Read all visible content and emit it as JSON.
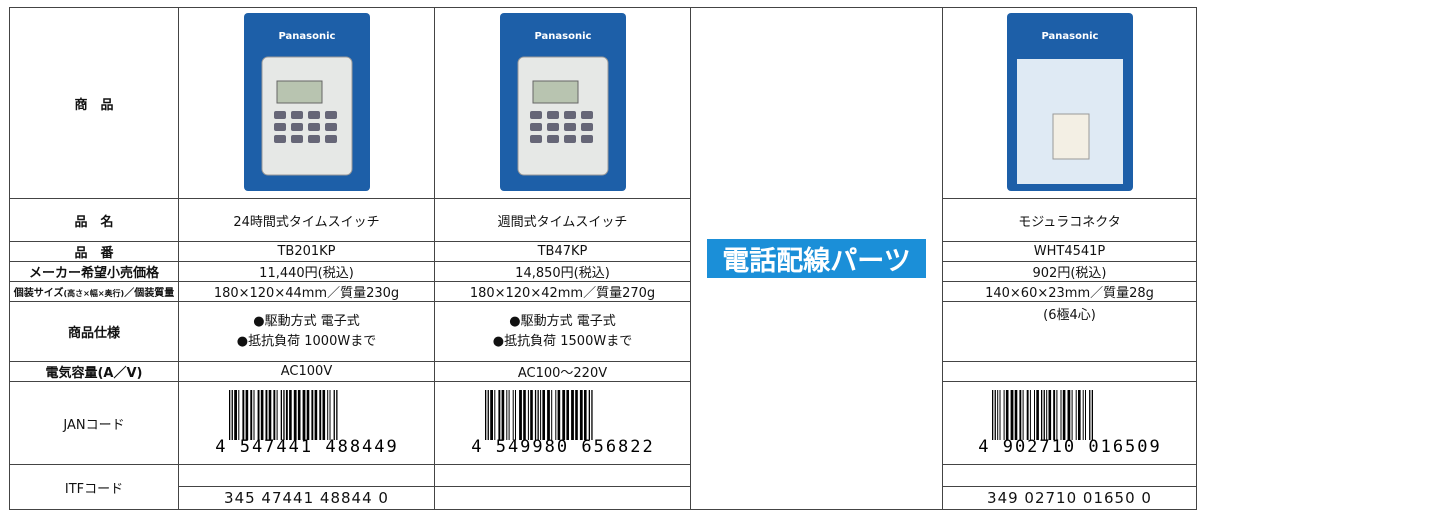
{
  "labels": {
    "product": "商　品",
    "name": "品　名",
    "number": "品　番",
    "price": "メーカー希望小売価格",
    "size_main": "個装サイズ",
    "size_dims": "(高さ×幅×奥行)",
    "size_weight": "／個装質量",
    "spec": "商品仕様",
    "capacity": "電気容量(A／V)",
    "jan": "JANコード",
    "itf": "ITFコード"
  },
  "banner": "電話配線パーツ",
  "products": [
    {
      "brand": "Panasonic",
      "name": "24時間式タイムスイッチ",
      "number": "TB201KP",
      "price": "11,440円(税込)",
      "size": "180×120×44mm／質量230g",
      "spec": [
        "●駆動方式 電子式",
        "●抵抗負荷 1000Wまで"
      ],
      "capacity": "AC100V",
      "jan": "4 547441 488449",
      "itf": "345 47441 48844 0"
    },
    {
      "brand": "Panasonic",
      "name": "週間式タイムスイッチ",
      "number": "TB47KP",
      "price": "14,850円(税込)",
      "size": "180×120×42mm／質量270g",
      "spec": [
        "●駆動方式 電子式",
        "●抵抗負荷 1500Wまで"
      ],
      "capacity": "AC100〜220V",
      "jan": "4 549980 656822"
    },
    {
      "brand": "Panasonic",
      "name": "モジュラコネクタ",
      "number": "WHT4541P",
      "price": "902円(税込)",
      "size": "140×60×23mm／質量28g",
      "spec": [
        "(6極4心)"
      ],
      "jan": "4 902710 016509",
      "itf": "349 02710 01650 0"
    }
  ]
}
